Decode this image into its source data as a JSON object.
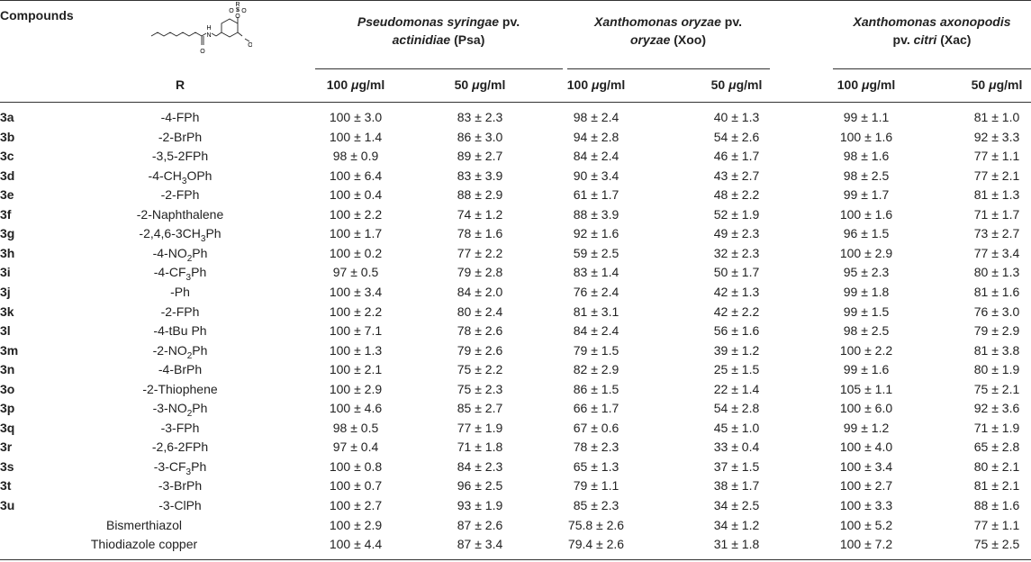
{
  "table": {
    "header": {
      "compounds": "Compounds",
      "r": "R"
    },
    "structure": {
      "atoms": [
        "H",
        "N",
        "O",
        "O",
        "S",
        "O",
        "R",
        "O",
        "O"
      ]
    },
    "groups": [
      {
        "lines": [
          [
            {
              "i": "Pseudomonas syringae"
            },
            " pv."
          ],
          [
            {
              "i": "actinidiae"
            },
            " (Psa)"
          ]
        ]
      },
      {
        "lines": [
          [
            {
              "i": "Xanthomonas oryzae"
            },
            " pv."
          ],
          [
            {
              "i": "oryzae"
            },
            " (Xoo)"
          ]
        ]
      },
      {
        "lines": [
          [
            {
              "i": "Xanthomonas axonopodis"
            }
          ],
          [
            "pv. ",
            {
              "i": "citri"
            },
            " (Xac)"
          ]
        ]
      }
    ],
    "subheaders": [
      [
        "100 ",
        {
          "i": "μ"
        },
        "g/ml"
      ],
      [
        "50 ",
        {
          "i": "μ"
        },
        "g/ml"
      ],
      [
        "100 ",
        {
          "i": "μ"
        },
        "g/ml"
      ],
      [
        "50 ",
        {
          "i": "μ"
        },
        "g/ml"
      ],
      [
        "100 ",
        {
          "i": "μ"
        },
        "g/ml"
      ],
      [
        "50 ",
        {
          "i": "μ"
        },
        "g/ml"
      ]
    ],
    "rows": [
      {
        "id": "3a",
        "r": [
          "-4-FPh"
        ],
        "values": [
          "100 ± 3.0",
          "83 ± 2.3",
          "98 ± 2.4",
          "40 ± 1.3",
          "99 ± 1.1",
          "81 ± 1.0"
        ]
      },
      {
        "id": "3b",
        "r": [
          "-2-BrPh"
        ],
        "values": [
          "100 ± 1.4",
          "86 ± 3.0",
          "94 ± 2.8",
          "54 ± 2.6",
          "100 ± 1.6",
          "92 ± 3.3"
        ]
      },
      {
        "id": "3c",
        "r": [
          "-3,5-2FPh"
        ],
        "values": [
          "98 ± 0.9",
          "89 ± 2.7",
          "84 ± 2.4",
          "46 ± 1.7",
          "98 ± 1.6",
          "77 ± 1.1"
        ]
      },
      {
        "id": "3d",
        "r": [
          "-4-CH",
          {
            "sub": "3"
          },
          "OPh"
        ],
        "values": [
          "100 ± 6.4",
          "83 ± 3.9",
          "90 ± 3.4",
          "43 ± 2.7",
          "98 ± 2.5",
          "77 ± 2.1"
        ]
      },
      {
        "id": "3e",
        "r": [
          "-2-FPh"
        ],
        "values": [
          "100 ± 0.4",
          "88 ± 2.9",
          "61 ± 1.7",
          "48 ± 2.2",
          "99 ± 1.7",
          "81 ± 1.3"
        ]
      },
      {
        "id": "3f",
        "r": [
          "-2-Naphthalene"
        ],
        "values": [
          "100 ± 2.2",
          "74 ± 1.2",
          "88 ± 3.9",
          "52 ± 1.9",
          "100 ± 1.6",
          "71 ± 1.7"
        ]
      },
      {
        "id": "3g",
        "r": [
          "-2,4,6-3CH",
          {
            "sub": "3"
          },
          "Ph"
        ],
        "values": [
          "100 ± 1.7",
          "78 ± 1.6",
          "92 ± 1.6",
          "49 ± 2.3",
          "96 ± 1.5",
          "73 ± 2.7"
        ]
      },
      {
        "id": "3h",
        "r": [
          "-4-NO",
          {
            "sub": "2"
          },
          "Ph"
        ],
        "values": [
          "100 ± 0.2",
          "77 ± 2.2",
          "59 ± 2.5",
          "32 ± 2.3",
          "100 ± 2.9",
          "77 ± 3.4"
        ]
      },
      {
        "id": "3i",
        "r": [
          "-4-CF",
          {
            "sub": "3"
          },
          "Ph"
        ],
        "values": [
          "97 ± 0.5",
          "79 ± 2.8",
          "83 ± 1.4",
          "50 ± 1.7",
          "95 ± 2.3",
          "80 ± 1.3"
        ]
      },
      {
        "id": "3j",
        "r": [
          "-Ph"
        ],
        "values": [
          "100 ± 3.4",
          "84 ± 2.0",
          "76 ± 2.4",
          "42 ± 1.3",
          "99 ± 1.8",
          "81 ± 1.6"
        ]
      },
      {
        "id": "3k",
        "r": [
          "-2-FPh"
        ],
        "values": [
          "100 ± 2.2",
          "80 ± 2.4",
          "81 ± 3.1",
          "42 ± 2.2",
          "99 ± 1.5",
          "76 ± 3.0"
        ]
      },
      {
        "id": "3l",
        "r": [
          "-4-tBu Ph"
        ],
        "values": [
          "100 ± 7.1",
          "78 ± 2.6",
          "84 ± 2.4",
          "56 ± 1.6",
          "98 ± 2.5",
          "79 ± 2.9"
        ]
      },
      {
        "id": "3m",
        "r": [
          "-2-NO",
          {
            "sub": "2"
          },
          "Ph"
        ],
        "values": [
          "100 ± 1.3",
          "79 ± 2.6",
          "79 ± 1.5",
          "39 ± 1.2",
          "100 ± 2.2",
          "81 ± 3.8"
        ]
      },
      {
        "id": "3n",
        "r": [
          "-4-BrPh"
        ],
        "values": [
          "100 ± 2.1",
          "75 ± 2.2",
          "82 ± 2.9",
          "25 ± 1.5",
          "99 ± 1.6",
          "80 ± 1.9"
        ]
      },
      {
        "id": "3o",
        "r": [
          "-2-Thiophene"
        ],
        "values": [
          "100 ± 2.9",
          "75 ± 2.3",
          "86 ± 1.5",
          "22 ± 1.4",
          "105 ± 1.1",
          "75 ± 2.1"
        ]
      },
      {
        "id": "3p",
        "r": [
          "-3-NO",
          {
            "sub": "2"
          },
          "Ph"
        ],
        "values": [
          "100 ± 4.6",
          "85 ± 2.7",
          "66 ± 1.7",
          "54 ± 2.8",
          "100 ± 6.0",
          "92 ± 3.6"
        ]
      },
      {
        "id": "3q",
        "r": [
          "-3-FPh"
        ],
        "values": [
          "98 ± 0.5",
          "77 ± 1.9",
          "67 ± 0.6",
          "45 ± 1.0",
          "99 ± 1.2",
          "71 ± 1.9"
        ]
      },
      {
        "id": "3r",
        "r": [
          "-2,6-2FPh"
        ],
        "values": [
          "97 ± 0.4",
          "71 ± 1.8",
          "78 ± 2.3",
          "33 ± 0.4",
          "100 ± 4.0",
          "65 ± 2.8"
        ]
      },
      {
        "id": "3s",
        "r": [
          "-3-CF",
          {
            "sub": "3"
          },
          "Ph"
        ],
        "values": [
          "100 ± 0.8",
          "84 ± 2.3",
          "65 ± 1.3",
          "37 ± 1.5",
          "100 ± 3.4",
          "80 ± 2.1"
        ]
      },
      {
        "id": "3t",
        "r": [
          "-3-BrPh"
        ],
        "values": [
          "100 ± 0.7",
          "96 ± 2.5",
          "79 ± 1.1",
          "38 ± 1.7",
          "100 ± 2.7",
          "81 ± 2.1"
        ]
      },
      {
        "id": "3u",
        "r": [
          "-3-ClPh"
        ],
        "values": [
          "100 ± 2.7",
          "93 ± 1.9",
          "85 ± 2.3",
          "34 ± 2.5",
          "100 ± 3.3",
          "88 ± 1.6"
        ]
      },
      {
        "name": "Bismerthiazol",
        "values": [
          "100 ± 2.9",
          "87 ± 2.6",
          "75.8 ± 2.6",
          "34 ± 1.2",
          "100 ± 5.2",
          "77 ± 1.1"
        ]
      },
      {
        "name": "Thiodiazole copper",
        "values": [
          "100 ± 4.4",
          "87 ± 3.4",
          "79.4 ± 2.6",
          "31 ± 1.8",
          "100 ± 7.2",
          "75 ± 2.5"
        ]
      }
    ]
  }
}
